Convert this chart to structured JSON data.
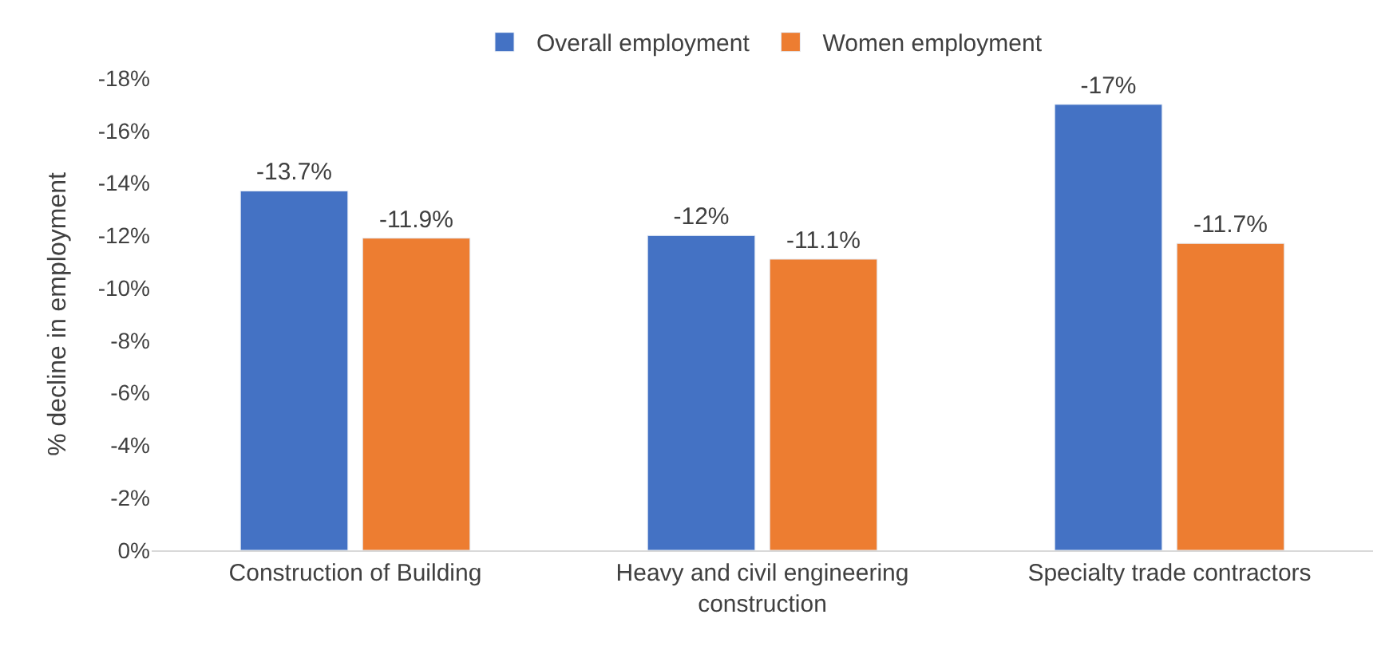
{
  "chart_data": {
    "type": "bar",
    "ylabel": "% decline in employment",
    "categories": [
      "Construction of Building",
      "Heavy and civil engineering construction",
      "Specialty trade contractors"
    ],
    "series": [
      {
        "name": "Overall employment",
        "color": "#4472c4",
        "values": [
          -13.7,
          -12,
          -17
        ],
        "value_labels": [
          "-13.7%",
          "-12%",
          "-17%"
        ]
      },
      {
        "name": "Women employment",
        "color": "#ed7d31",
        "values": [
          -11.9,
          -11.1,
          -11.7
        ],
        "value_labels": [
          "-11.9%",
          "-11.1%",
          "-11.7%"
        ]
      }
    ],
    "ylim": [
      0,
      -18
    ],
    "yticks": [
      {
        "value": 0,
        "label": "0%"
      },
      {
        "value": -2,
        "label": "-2%"
      },
      {
        "value": -4,
        "label": "-4%"
      },
      {
        "value": -6,
        "label": "-6%"
      },
      {
        "value": -8,
        "label": "-8%"
      },
      {
        "value": -10,
        "label": "-10%"
      },
      {
        "value": -12,
        "label": "-12%"
      },
      {
        "value": -14,
        "label": "-14%"
      },
      {
        "value": -16,
        "label": "-16%"
      },
      {
        "value": -18,
        "label": "-18%"
      }
    ],
    "legend": "top"
  }
}
